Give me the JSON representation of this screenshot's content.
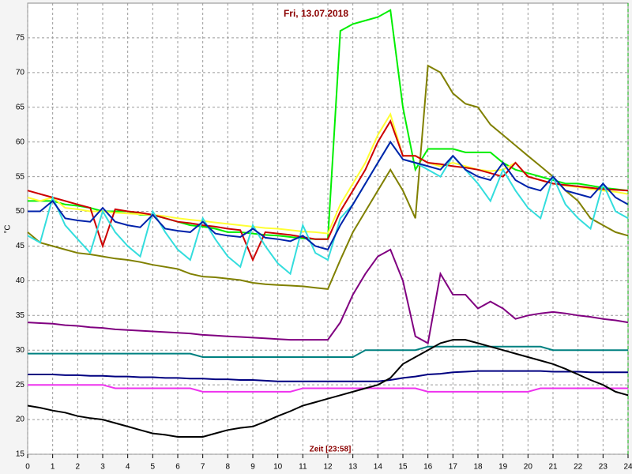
{
  "chart_data": {
    "type": "line",
    "title": "Fri, 13.07.2018",
    "x_label": "Zeit [23:58]",
    "y_label": "°C",
    "xlim": [
      0,
      24
    ],
    "ylim": [
      15,
      80
    ],
    "xticks": [
      0,
      1,
      2,
      3,
      4,
      5,
      6,
      7,
      8,
      9,
      10,
      11,
      12,
      13,
      14,
      15,
      16,
      17,
      18,
      19,
      20,
      21,
      22,
      23,
      24
    ],
    "yticks": [
      15,
      20,
      25,
      30,
      35,
      40,
      45,
      50,
      55,
      60,
      65,
      70,
      75
    ],
    "grid": true,
    "x": [
      0,
      0.5,
      1,
      1.5,
      2,
      2.5,
      3,
      3.5,
      4,
      4.5,
      5,
      5.5,
      6,
      6.5,
      7,
      7.5,
      8,
      8.5,
      9,
      9.5,
      10,
      10.5,
      11,
      11.5,
      12,
      12.5,
      13,
      13.5,
      14,
      14.5,
      15,
      15.5,
      16,
      16.5,
      17,
      17.5,
      18,
      18.5,
      19,
      19.5,
      20,
      20.5,
      21,
      21.5,
      22,
      22.5,
      23,
      23.5,
      24
    ],
    "series": [
      {
        "color": "#00ee00",
        "values": [
          51.5,
          51.5,
          51.5,
          51,
          50.8,
          50.5,
          50,
          50,
          50,
          49.5,
          49.5,
          49,
          48.5,
          48,
          47.8,
          47.5,
          47,
          47,
          46.8,
          46.6,
          46.5,
          46.3,
          46.1,
          46,
          46,
          76,
          77,
          77.5,
          78,
          79,
          65,
          56,
          59,
          59,
          59,
          58.5,
          58.5,
          58.5,
          57,
          56,
          55.5,
          55,
          54.5,
          54,
          54,
          53.7,
          53.4,
          53.2,
          53
        ]
      },
      {
        "color": "#808000",
        "values": [
          47,
          45.5,
          45,
          44.5,
          44,
          43.8,
          43.5,
          43.2,
          43,
          42.7,
          42.3,
          42,
          41.7,
          41,
          40.6,
          40.5,
          40.3,
          40.1,
          39.7,
          39.5,
          39.4,
          39.3,
          39.2,
          39,
          38.8,
          43,
          47,
          50,
          53,
          56,
          53,
          49,
          71,
          70,
          67,
          65.5,
          65,
          62.5,
          61,
          59.5,
          58,
          56.5,
          55,
          53,
          51.5,
          49,
          48,
          47,
          46.5
        ]
      },
      {
        "color": "#ffff33",
        "values": [
          52,
          51.5,
          52,
          50.5,
          50.3,
          50,
          50,
          49.8,
          49.7,
          49.6,
          49.5,
          49.3,
          49,
          48.8,
          48.6,
          48.4,
          48.2,
          48,
          47.8,
          47.6,
          47.5,
          47.3,
          47.1,
          47,
          46.8,
          51,
          54,
          57,
          61,
          64,
          58,
          58,
          57,
          56.5,
          57,
          56.5,
          56,
          55.8,
          56,
          57,
          55,
          54.5,
          54,
          53.7,
          53.5,
          53.2,
          53,
          52.8,
          52.5
        ]
      },
      {
        "color": "#cc0000",
        "values": [
          53,
          52.5,
          52,
          51.5,
          51,
          50.5,
          45,
          50.3,
          50,
          49.8,
          49.5,
          49,
          48.5,
          48.3,
          48,
          47.8,
          47.5,
          47.3,
          43,
          47,
          46.8,
          46.6,
          46.3,
          46,
          46,
          50,
          53,
          56,
          60,
          63,
          58,
          58,
          57,
          56.8,
          56.5,
          56.3,
          56,
          55.5,
          55,
          57,
          55,
          54.5,
          54,
          53.8,
          53.6,
          53.4,
          53.2,
          53.1,
          53
        ]
      },
      {
        "color": "#33dddd",
        "values": [
          46.5,
          45.5,
          52,
          48,
          46,
          44,
          50,
          47,
          45,
          43.5,
          50,
          47,
          44.5,
          43,
          49,
          46,
          43.5,
          42,
          48,
          45,
          42.5,
          41,
          48,
          44,
          43,
          49,
          51,
          54,
          57,
          60,
          57.5,
          57,
          56,
          55,
          58,
          56,
          54,
          51.5,
          56,
          53,
          50.5,
          49,
          55,
          51,
          49,
          47.5,
          54,
          50,
          49
        ]
      },
      {
        "color": "#0022aa",
        "values": [
          50,
          50,
          51.5,
          49,
          48.7,
          48.5,
          50.5,
          48.5,
          48,
          47.7,
          49.5,
          47.5,
          47.2,
          47,
          48.5,
          46.8,
          46.5,
          46.3,
          47.5,
          46.2,
          46,
          45.7,
          46.5,
          45,
          44.5,
          48,
          51,
          54,
          57,
          60,
          57.5,
          57,
          56.5,
          56,
          58,
          56,
          55,
          54.5,
          57,
          54.5,
          53.5,
          53,
          55,
          53,
          52.5,
          52,
          54,
          52,
          51
        ]
      },
      {
        "color": "#800080",
        "values": [
          34,
          33.9,
          33.8,
          33.6,
          33.5,
          33.3,
          33.2,
          33,
          32.9,
          32.8,
          32.7,
          32.6,
          32.5,
          32.4,
          32.2,
          32.1,
          32,
          31.9,
          31.8,
          31.7,
          31.6,
          31.5,
          31.5,
          31.5,
          31.5,
          34,
          38,
          41,
          43.5,
          44.5,
          40,
          32,
          31,
          41,
          38,
          38,
          36,
          37,
          36,
          34.5,
          35,
          35.3,
          35.5,
          35.3,
          35,
          34.8,
          34.5,
          34.3,
          34
        ]
      },
      {
        "color": "#008080",
        "values": [
          29.5,
          29.5,
          29.5,
          29.5,
          29.5,
          29.5,
          29.5,
          29.5,
          29.5,
          29.5,
          29.5,
          29.5,
          29.5,
          29.5,
          29,
          29,
          29,
          29,
          29,
          29,
          29,
          29,
          29,
          29,
          29,
          29,
          29,
          30,
          30,
          30,
          30,
          30,
          30.5,
          30.5,
          30.5,
          30.5,
          30.5,
          30.5,
          30.5,
          30.5,
          30.5,
          30.5,
          30,
          30,
          30,
          30,
          30,
          30,
          30
        ]
      },
      {
        "color": "#000080",
        "values": [
          26.5,
          26.5,
          26.5,
          26.4,
          26.4,
          26.3,
          26.3,
          26.2,
          26.2,
          26.1,
          26.1,
          26,
          26,
          25.9,
          25.9,
          25.8,
          25.8,
          25.7,
          25.7,
          25.6,
          25.5,
          25.5,
          25.5,
          25.5,
          25.5,
          25.5,
          25.5,
          25.5,
          25.5,
          25.7,
          26,
          26.2,
          26.5,
          26.6,
          26.8,
          26.9,
          27,
          27,
          27,
          27,
          27,
          27,
          26.9,
          26.9,
          26.9,
          26.8,
          26.8,
          26.8,
          26.8
        ]
      },
      {
        "color": "#ee33ee",
        "values": [
          25,
          25,
          25,
          25,
          25,
          25,
          25,
          24.5,
          24.5,
          24.5,
          24.5,
          24.5,
          24.5,
          24.5,
          24,
          24,
          24,
          24,
          24,
          24,
          24,
          24,
          24.5,
          24.5,
          24.5,
          24.5,
          24.5,
          24.5,
          24.5,
          24.5,
          24.5,
          24.5,
          24,
          24,
          24,
          24,
          24,
          24,
          24,
          24,
          24,
          24.5,
          24.5,
          24.5,
          24.5,
          24.5,
          24.5,
          24.5,
          24.5
        ]
      },
      {
        "color": "#000000",
        "values": [
          22,
          21.7,
          21.3,
          21,
          20.5,
          20.2,
          20,
          19.5,
          19,
          18.5,
          18,
          17.8,
          17.5,
          17.5,
          17.5,
          18,
          18.5,
          18.8,
          19,
          19.7,
          20.5,
          21.2,
          22,
          22.5,
          23,
          23.5,
          24,
          24.5,
          25,
          26,
          28,
          29,
          30,
          31,
          31.5,
          31.5,
          31,
          30.5,
          30,
          29.5,
          29,
          28.5,
          28,
          27.3,
          26.5,
          25.7,
          25,
          24,
          23.5
        ]
      }
    ]
  }
}
